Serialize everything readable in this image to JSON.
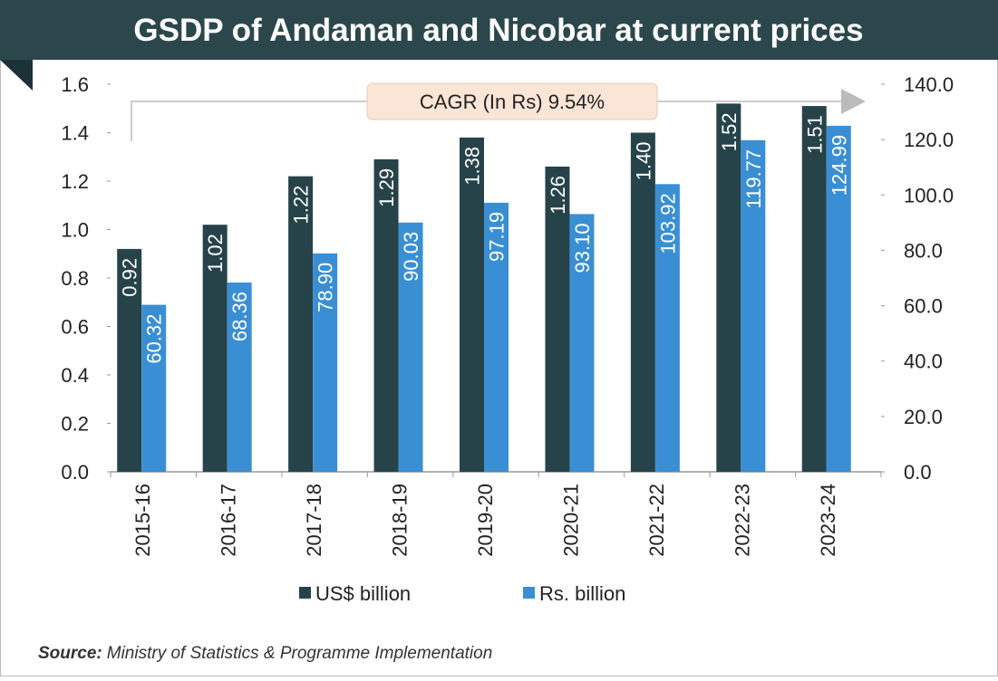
{
  "chart_data": {
    "type": "bar",
    "title": "GSDP of Andaman and Nicobar at current prices",
    "annotation": "CAGR (In Rs) 9.54%",
    "categories": [
      "2015-16",
      "2016-17",
      "2017-18",
      "2018-19",
      "2019-20",
      "2020-21",
      "2021-22",
      "2022-23",
      "2023-24"
    ],
    "series": [
      {
        "name": "US$ billion",
        "color": "#264349",
        "values": [
          0.92,
          1.02,
          1.22,
          1.29,
          1.38,
          1.26,
          1.4,
          1.52,
          1.51
        ],
        "value_labels": [
          "0.92",
          "1.02",
          "1.22",
          "1.29",
          "1.38",
          "1.26",
          "1.40",
          "1.52",
          "1.51"
        ]
      },
      {
        "name": "Rs. billion",
        "color": "#3a8fd4",
        "axis": "y2",
        "values": [
          60.32,
          68.36,
          78.9,
          90.03,
          97.19,
          93.1,
          103.92,
          119.77,
          124.99
        ],
        "value_labels": [
          "60.32",
          "68.36",
          "78.90",
          "90.03",
          "97.19",
          "93.10",
          "103.92",
          "119.77",
          "124.99"
        ]
      }
    ],
    "ylim": [
      0,
      1.6
    ],
    "yticks": [
      {
        "value": 0,
        "label": "0.0"
      },
      {
        "value": 0.2,
        "label": "0.2"
      },
      {
        "value": 0.4,
        "label": "0.4"
      },
      {
        "value": 0.6,
        "label": "0.6"
      },
      {
        "value": 0.8,
        "label": "0.8"
      },
      {
        "value": 1,
        "label": "1.0"
      },
      {
        "value": 1.2,
        "label": "1.2"
      },
      {
        "value": 1.4,
        "label": "1.4"
      },
      {
        "value": 1.6,
        "label": "1.6"
      }
    ],
    "y2lim": [
      0,
      140
    ],
    "y2ticks": [
      {
        "value": 0,
        "label": "0.0"
      },
      {
        "value": 20,
        "label": "20.0"
      },
      {
        "value": 40,
        "label": "40.0"
      },
      {
        "value": 60,
        "label": "60.0"
      },
      {
        "value": 80,
        "label": "80.0"
      },
      {
        "value": 100,
        "label": "100.0"
      },
      {
        "value": 120,
        "label": "120.0"
      },
      {
        "value": 140,
        "label": "140.0"
      }
    ],
    "grid": false,
    "legend": "bottom",
    "source_label": "Source:",
    "source": "Ministry of Statistics & Programme Implementation"
  }
}
